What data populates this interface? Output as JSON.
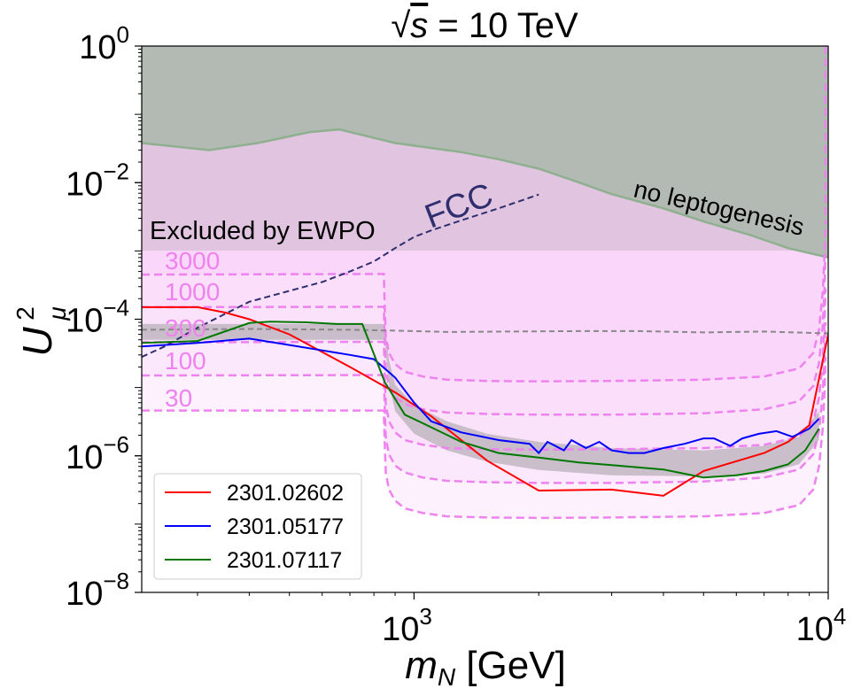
{
  "chart_data": {
    "type": "line",
    "title_prefix": "√",
    "title_var": "s",
    "title_suffix": " = 10 TeV",
    "xlabel": {
      "var": "m",
      "sub": "N",
      "unit": " [GeV]"
    },
    "ylabel": {
      "var": "U",
      "sup": "2",
      "sub": "μ"
    },
    "xscale": "log",
    "yscale": "log",
    "xlim": [
      220,
      10000
    ],
    "ylim": [
      1e-08,
      1
    ],
    "x_ticks": [
      {
        "value": 1000,
        "base": "10",
        "exp": "3"
      },
      {
        "value": 10000,
        "base": "10",
        "exp": "4"
      }
    ],
    "y_ticks": [
      {
        "value": 1,
        "base": "10",
        "exp": "0"
      },
      {
        "value": 0.01,
        "base": "10",
        "exp": "−2"
      },
      {
        "value": 0.0001,
        "base": "10",
        "exp": "−4"
      },
      {
        "value": 1e-06,
        "base": "10",
        "exp": "−6"
      },
      {
        "value": 1e-08,
        "base": "10",
        "exp": "−8"
      }
    ],
    "colors": {
      "ewpo": "#e0c4e0",
      "leptogenesis": "#b3bab3",
      "leptogenesis_edge": "#8fb08f",
      "sensitivity_fill": "#f9d6f9",
      "sensitivity_line": "#ee82ee",
      "gray_band": "#b8b0b8",
      "fcc": "#2f2f6e",
      "gray_dashed": "#888888"
    },
    "regions": {
      "ewpo_label": "Excluded by EWPO",
      "ewpo_limit": 0.001,
      "leptogenesis_label": "no leptogenesis",
      "leptogenesis_boundary": {
        "x": [
          220,
          320,
          420,
          560,
          660,
          900,
          1300,
          1600,
          2000,
          2400,
          3000,
          4000,
          5000,
          6500,
          8000,
          10000
        ],
        "y": [
          0.038,
          0.03,
          0.038,
          0.055,
          0.06,
          0.038,
          0.028,
          0.022,
          0.016,
          0.011,
          0.0068,
          0.0042,
          0.0027,
          0.0017,
          0.0011,
          0.0008
        ]
      }
    },
    "sensitivity": {
      "labels": [
        "3000",
        "1000",
        "300",
        "100",
        "30"
      ],
      "x": [
        220,
        845,
        850,
        855,
        870,
        900,
        950,
        1050,
        1200,
        1500,
        2000,
        3000,
        5000,
        7000,
        8500,
        9200,
        9500,
        9700,
        9800,
        9850
      ],
      "curves": [
        {
          "name": "3000",
          "y": [
            0.00045,
            0.00046,
            0.00014,
            5.5e-05,
            3.2e-05,
            2.2e-05,
            1.7e-05,
            1.45e-05,
            1.3e-05,
            1.25e-05,
            1.23e-05,
            1.25e-05,
            1.3e-05,
            1.45e-05,
            1.9e-05,
            3.2e-05,
            7e-05,
            0.00025,
            0.0009,
            0.0025
          ]
        },
        {
          "name": "1000",
          "y": [
            0.00015,
            0.000152,
            4.6e-05,
            1.8e-05,
            1.05e-05,
            7.2e-06,
            5.7e-06,
            4.8e-06,
            4.3e-06,
            4.1e-06,
            4e-06,
            4e-06,
            4.2e-06,
            4.8e-06,
            6.3e-06,
            1.05e-05,
            2.3e-05,
            8e-05,
            0.0003,
            0.0009
          ]
        },
        {
          "name": "300",
          "y": [
            4.6e-05,
            4.65e-05,
            1.4e-05,
            5.5e-06,
            3.2e-06,
            2.2e-06,
            1.7e-06,
            1.45e-06,
            1.3e-06,
            1.25e-06,
            1.23e-06,
            1.25e-06,
            1.3e-06,
            1.45e-06,
            1.9e-06,
            3.2e-06,
            7e-06,
            2.5e-05,
            9e-05,
            0.00028
          ]
        },
        {
          "name": "100",
          "y": [
            1.5e-05,
            1.52e-05,
            4.6e-06,
            1.8e-06,
            1.05e-06,
            7.2e-07,
            5.7e-07,
            4.8e-07,
            4.3e-07,
            4.1e-07,
            4e-07,
            4e-07,
            4.2e-07,
            4.8e-07,
            6.3e-07,
            1.05e-06,
            2.3e-06,
            8e-06,
            3e-05,
            9e-05
          ]
        },
        {
          "name": "30",
          "y": [
            4.6e-06,
            4.6e-06,
            1.4e-06,
            5.5e-07,
            3.2e-07,
            2.2e-07,
            1.7e-07,
            1.45e-07,
            1.3e-07,
            1.25e-07,
            1.23e-07,
            1.25e-07,
            1.3e-07,
            1.45e-07,
            1.9e-07,
            3.2e-07,
            7e-07,
            2.5e-06,
            9e-06,
            2.8e-05
          ]
        }
      ]
    },
    "gray_band": {
      "x": [
        220,
        850,
        870,
        900,
        1000,
        1200,
        1500,
        2000,
        3000,
        5000,
        7000,
        8500,
        9500
      ],
      "upper": [
        8.5e-05,
        8.5e-05,
        2.5e-05,
        1.1e-05,
        5.5e-06,
        3.2e-06,
        2.1e-06,
        1.6e-06,
        1.3e-06,
        1.2e-06,
        1.4e-06,
        1.9e-06,
        4.5e-06
      ],
      "lower": [
        5e-05,
        5e-05,
        1.1e-05,
        4.5e-06,
        2.1e-06,
        1.2e-06,
        8.2e-07,
        6.2e-07,
        5.2e-07,
        5e-07,
        5.5e-07,
        7.5e-07,
        1.7e-06
      ]
    },
    "fcc": {
      "label": "FCC",
      "x": [
        220,
        250,
        300,
        350,
        400,
        500,
        600,
        700,
        800,
        900,
        1000,
        1100,
        1300,
        1600,
        2000
      ],
      "y": [
        2.8e-05,
        4e-05,
        7.5e-05,
        0.00012,
        0.00018,
        0.00026,
        0.00035,
        0.0005,
        0.0007,
        0.0011,
        0.0016,
        0.002,
        0.0028,
        0.0042,
        0.0067
      ]
    },
    "gray_dashed": {
      "x": [
        220,
        400,
        700,
        900,
        1200,
        1700,
        2500,
        3500,
        5000,
        7000,
        10000
      ],
      "y": [
        7e-05,
        7.2e-05,
        7e-05,
        6.8e-05,
        6.5e-05,
        6.6e-05,
        6.7e-05,
        6.7e-05,
        6.4e-05,
        6.6e-05,
        6.2e-05
      ]
    },
    "series": [
      {
        "name": "2301.02602",
        "color": "#ff0000",
        "x": [
          220,
          300,
          350,
          400,
          500,
          700,
          900,
          1100,
          1500,
          2000,
          3000,
          4000,
          5000,
          7000,
          8000,
          9000,
          10000
        ],
        "y": [
          0.00015,
          0.00015,
          0.000125,
          0.0001,
          6e-05,
          2e-05,
          8.5e-06,
          3.8e-06,
          8.5e-07,
          3.1e-07,
          3.2e-07,
          2.6e-07,
          6e-07,
          1.1e-06,
          1.6e-06,
          2.8e-06,
          6e-05
        ]
      },
      {
        "name": "2301.05177",
        "color": "#0000ff",
        "x": [
          220,
          300,
          400,
          500,
          600,
          700,
          800,
          900,
          1000,
          1100,
          1300,
          1600,
          1900,
          2000,
          2100,
          2300,
          2400,
          2600,
          2800,
          3000,
          3300,
          3600,
          4000,
          4500,
          5000,
          5300,
          5800,
          6200,
          6800,
          7500,
          8200,
          9000,
          9500
        ],
        "y": [
          4e-05,
          4.5e-05,
          5.2e-05,
          4.2e-05,
          3.5e-05,
          3e-05,
          2.6e-05,
          1.4e-05,
          6e-06,
          3.2e-06,
          2.2e-06,
          1.7e-06,
          1.5e-06,
          1.1e-06,
          1.6e-06,
          1.2e-06,
          1.7e-06,
          1.3e-06,
          1.6e-06,
          1.2e-06,
          1.1e-06,
          1.1e-06,
          1.3e-06,
          1.5e-06,
          1.8e-06,
          1.8e-06,
          1.4e-06,
          1.8e-06,
          2.1e-06,
          2.3e-06,
          1.9e-06,
          2.5e-06,
          3.5e-06
        ]
      },
      {
        "name": "2301.07117",
        "color": "#007700",
        "x": [
          220,
          300,
          400,
          450,
          550,
          650,
          750,
          850,
          950,
          1050,
          1300,
          1600,
          2000,
          2500,
          3000,
          4000,
          5000,
          6000,
          7000,
          8000,
          8800,
          9500
        ],
        "y": [
          4.5e-05,
          4.8e-05,
          8.8e-05,
          9.2e-05,
          9e-05,
          8.5e-05,
          8.5e-05,
          1.2e-05,
          4e-06,
          3e-06,
          1.6e-06,
          1.1e-06,
          9.4e-07,
          8e-07,
          7.3e-07,
          6.3e-07,
          4.8e-07,
          5.2e-07,
          6e-07,
          7.5e-07,
          1.2e-06,
          2.5e-06
        ]
      }
    ]
  }
}
